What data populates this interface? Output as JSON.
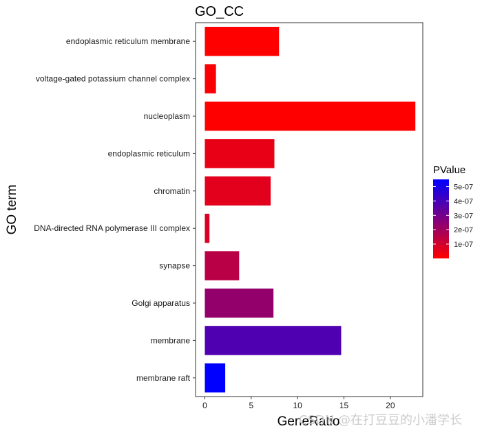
{
  "chart_data": {
    "type": "bar",
    "orientation": "horizontal",
    "title": "GO_CC",
    "xlabel": "GeneRatio",
    "ylabel": "GO term",
    "xlim": [
      -1,
      23.5
    ],
    "xticks": [
      0,
      5,
      10,
      15,
      20
    ],
    "grid": false,
    "legend": {
      "title": "PValue",
      "placement": "right",
      "ticks": [
        {
          "value": 5e-07,
          "label": "5e-07"
        },
        {
          "value": 4e-07,
          "label": "4e-07"
        },
        {
          "value": 3e-07,
          "label": "3e-07"
        },
        {
          "value": 2e-07,
          "label": "2e-07"
        },
        {
          "value": 1e-07,
          "label": "1e-07"
        }
      ],
      "range": [
        0,
        5.5e-07
      ],
      "low_color": "#ff0000",
      "high_color": "#0000ff"
    },
    "categories": [
      "endoplasmic reticulum membrane",
      "voltage-gated potassium channel complex",
      "nucleoplasm",
      "endoplasmic reticulum",
      "chromatin",
      "DNA-directed RNA polymerase III complex",
      "synapse",
      "Golgi apparatus",
      "membrane",
      "membrane raft"
    ],
    "values": [
      8,
      1.2,
      22.7,
      7.5,
      7.1,
      0.5,
      3.7,
      7.4,
      14.7,
      2.2
    ],
    "pvalues": [
      1e-09,
      1e-08,
      1e-09,
      5e-08,
      6e-08,
      8e-08,
      1.5e-07,
      2.3e-07,
      3.8e-07,
      5.5e-07
    ]
  },
  "watermark": "CSDN @在打豆豆的小潘学长"
}
